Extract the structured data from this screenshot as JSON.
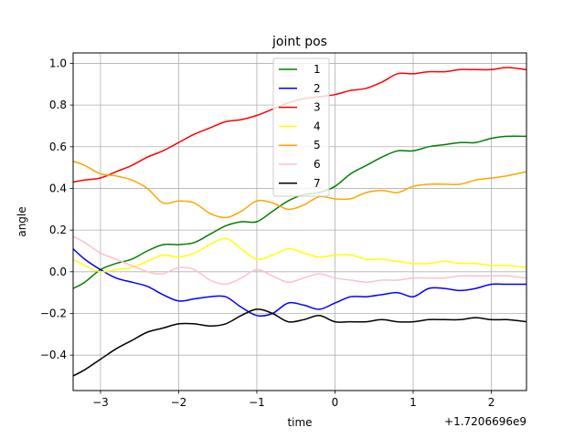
{
  "chart_data": {
    "type": "line",
    "title": "joint pos",
    "xlabel": "time",
    "ylabel": "angle",
    "x_offset_label": "+1.7206696e9",
    "xlim": [
      -3.35,
      2.45
    ],
    "ylim": [
      -0.57,
      1.05
    ],
    "xticks": [
      -3,
      -2,
      -1,
      0,
      1,
      2
    ],
    "xtick_labels": [
      "−3",
      "−2",
      "−1",
      "0",
      "1",
      "2"
    ],
    "yticks": [
      -0.4,
      -0.2,
      0.0,
      0.2,
      0.4,
      0.6,
      0.8,
      1.0
    ],
    "ytick_labels": [
      "−0.4",
      "−0.2",
      "0.0",
      "0.2",
      "0.4",
      "0.6",
      "0.8",
      "1.0"
    ],
    "grid": true,
    "legend_position": "top-center",
    "x": [
      -3.35,
      -3.2,
      -3.0,
      -2.8,
      -2.6,
      -2.4,
      -2.2,
      -2.0,
      -1.8,
      -1.6,
      -1.4,
      -1.2,
      -1.0,
      -0.8,
      -0.6,
      -0.4,
      -0.2,
      0.0,
      0.2,
      0.4,
      0.6,
      0.8,
      1.0,
      1.2,
      1.4,
      1.6,
      1.8,
      2.0,
      2.2,
      2.45
    ],
    "series": [
      {
        "name": "1",
        "color": "#008000",
        "values": [
          -0.08,
          -0.05,
          0.01,
          0.04,
          0.06,
          0.1,
          0.13,
          0.13,
          0.14,
          0.18,
          0.22,
          0.24,
          0.24,
          0.29,
          0.34,
          0.37,
          0.38,
          0.41,
          0.47,
          0.51,
          0.55,
          0.58,
          0.58,
          0.6,
          0.61,
          0.62,
          0.62,
          0.64,
          0.65,
          0.65
        ]
      },
      {
        "name": "2",
        "color": "#0000ff",
        "values": [
          0.11,
          0.06,
          0.01,
          -0.03,
          -0.05,
          -0.07,
          -0.11,
          -0.14,
          -0.13,
          -0.12,
          -0.12,
          -0.17,
          -0.21,
          -0.2,
          -0.15,
          -0.16,
          -0.18,
          -0.15,
          -0.12,
          -0.12,
          -0.11,
          -0.1,
          -0.12,
          -0.08,
          -0.08,
          -0.09,
          -0.08,
          -0.06,
          -0.06,
          -0.06
        ]
      },
      {
        "name": "3",
        "color": "#ff0000",
        "values": [
          0.43,
          0.44,
          0.45,
          0.48,
          0.51,
          0.55,
          0.58,
          0.62,
          0.66,
          0.69,
          0.72,
          0.73,
          0.75,
          0.78,
          0.81,
          0.83,
          0.84,
          0.85,
          0.87,
          0.88,
          0.91,
          0.95,
          0.95,
          0.96,
          0.96,
          0.97,
          0.97,
          0.97,
          0.98,
          0.97
        ]
      },
      {
        "name": "4",
        "color": "#ffff00",
        "values": [
          0.06,
          0.03,
          0.0,
          0.01,
          0.02,
          0.05,
          0.08,
          0.07,
          0.09,
          0.13,
          0.16,
          0.11,
          0.06,
          0.08,
          0.11,
          0.09,
          0.07,
          0.08,
          0.08,
          0.06,
          0.06,
          0.05,
          0.04,
          0.04,
          0.05,
          0.04,
          0.04,
          0.03,
          0.03,
          0.02
        ]
      },
      {
        "name": "5",
        "color": "#ffa500",
        "values": [
          0.53,
          0.51,
          0.47,
          0.46,
          0.44,
          0.4,
          0.33,
          0.34,
          0.33,
          0.28,
          0.26,
          0.29,
          0.34,
          0.33,
          0.3,
          0.32,
          0.36,
          0.35,
          0.35,
          0.38,
          0.39,
          0.38,
          0.41,
          0.42,
          0.42,
          0.42,
          0.44,
          0.45,
          0.46,
          0.48
        ]
      },
      {
        "name": "6",
        "color": "#ffc0cb",
        "values": [
          0.17,
          0.14,
          0.09,
          0.06,
          0.03,
          0.0,
          -0.01,
          0.02,
          0.01,
          -0.04,
          -0.06,
          -0.03,
          0.01,
          -0.02,
          -0.05,
          -0.03,
          -0.01,
          -0.03,
          -0.04,
          -0.05,
          -0.04,
          -0.04,
          -0.03,
          -0.03,
          -0.03,
          -0.02,
          -0.02,
          -0.02,
          -0.02,
          -0.03
        ]
      },
      {
        "name": "7",
        "color": "#000000",
        "values": [
          -0.5,
          -0.47,
          -0.42,
          -0.37,
          -0.33,
          -0.29,
          -0.27,
          -0.25,
          -0.25,
          -0.26,
          -0.25,
          -0.21,
          -0.18,
          -0.2,
          -0.24,
          -0.23,
          -0.21,
          -0.24,
          -0.24,
          -0.24,
          -0.23,
          -0.24,
          -0.24,
          -0.23,
          -0.23,
          -0.23,
          -0.22,
          -0.23,
          -0.23,
          -0.24
        ]
      }
    ]
  }
}
